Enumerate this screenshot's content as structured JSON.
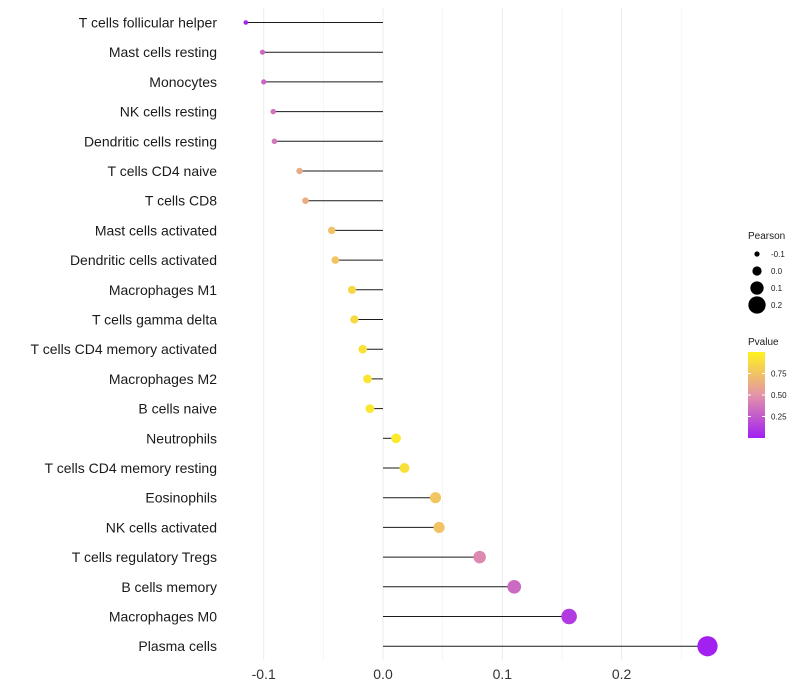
{
  "chart_data": {
    "type": "lollipop",
    "title": "",
    "xlabel": "",
    "ylabel": "",
    "xlim": [
      -0.12,
      0.28
    ],
    "x_ticks": [
      -0.1,
      0.0,
      0.1,
      0.2
    ],
    "x_tick_labels": [
      "-0.1",
      "0.0",
      "0.1",
      "0.2"
    ],
    "categories": [
      "T cells follicular helper",
      "Mast cells resting",
      "Monocytes",
      "NK cells resting",
      "Dendritic cells resting",
      "T cells CD4 naive",
      "T cells CD8",
      "Mast cells activated",
      "Dendritic cells activated",
      "Macrophages M1",
      "T cells gamma delta",
      "T cells CD4 memory activated",
      "Macrophages M2",
      "B cells naive",
      "Neutrophils",
      "T cells CD4 memory resting",
      "Eosinophils",
      "NK cells activated",
      "T cells regulatory  Tregs ",
      "B cells memory",
      "Macrophages M0",
      "Plasma cells"
    ],
    "pearson": [
      -0.115,
      -0.101,
      -0.1,
      -0.092,
      -0.091,
      -0.07,
      -0.065,
      -0.043,
      -0.04,
      -0.026,
      -0.024,
      -0.017,
      -0.013,
      -0.011,
      0.011,
      0.018,
      0.044,
      0.047,
      0.081,
      0.11,
      0.156,
      0.272
    ],
    "pvalue": [
      0.02,
      0.3,
      0.3,
      0.36,
      0.38,
      0.62,
      0.64,
      0.74,
      0.76,
      0.85,
      0.86,
      0.91,
      0.93,
      0.94,
      0.96,
      0.9,
      0.76,
      0.75,
      0.45,
      0.32,
      0.12,
      0.01
    ],
    "legend_size": {
      "title": "Pearson",
      "labels": [
        "-0.1",
        "0.0",
        "0.1",
        "0.2"
      ],
      "values": [
        -0.1,
        0.0,
        0.1,
        0.2
      ]
    },
    "legend_color": {
      "title": "Pvalue",
      "labels": [
        "0.75",
        "0.50",
        "0.25"
      ],
      "values": [
        0.75,
        0.5,
        0.25
      ],
      "range": [
        0.0,
        1.0
      ],
      "low_color": "#a11ff2",
      "mid_color": "#e394a8",
      "high_color": "#fff21f"
    }
  }
}
